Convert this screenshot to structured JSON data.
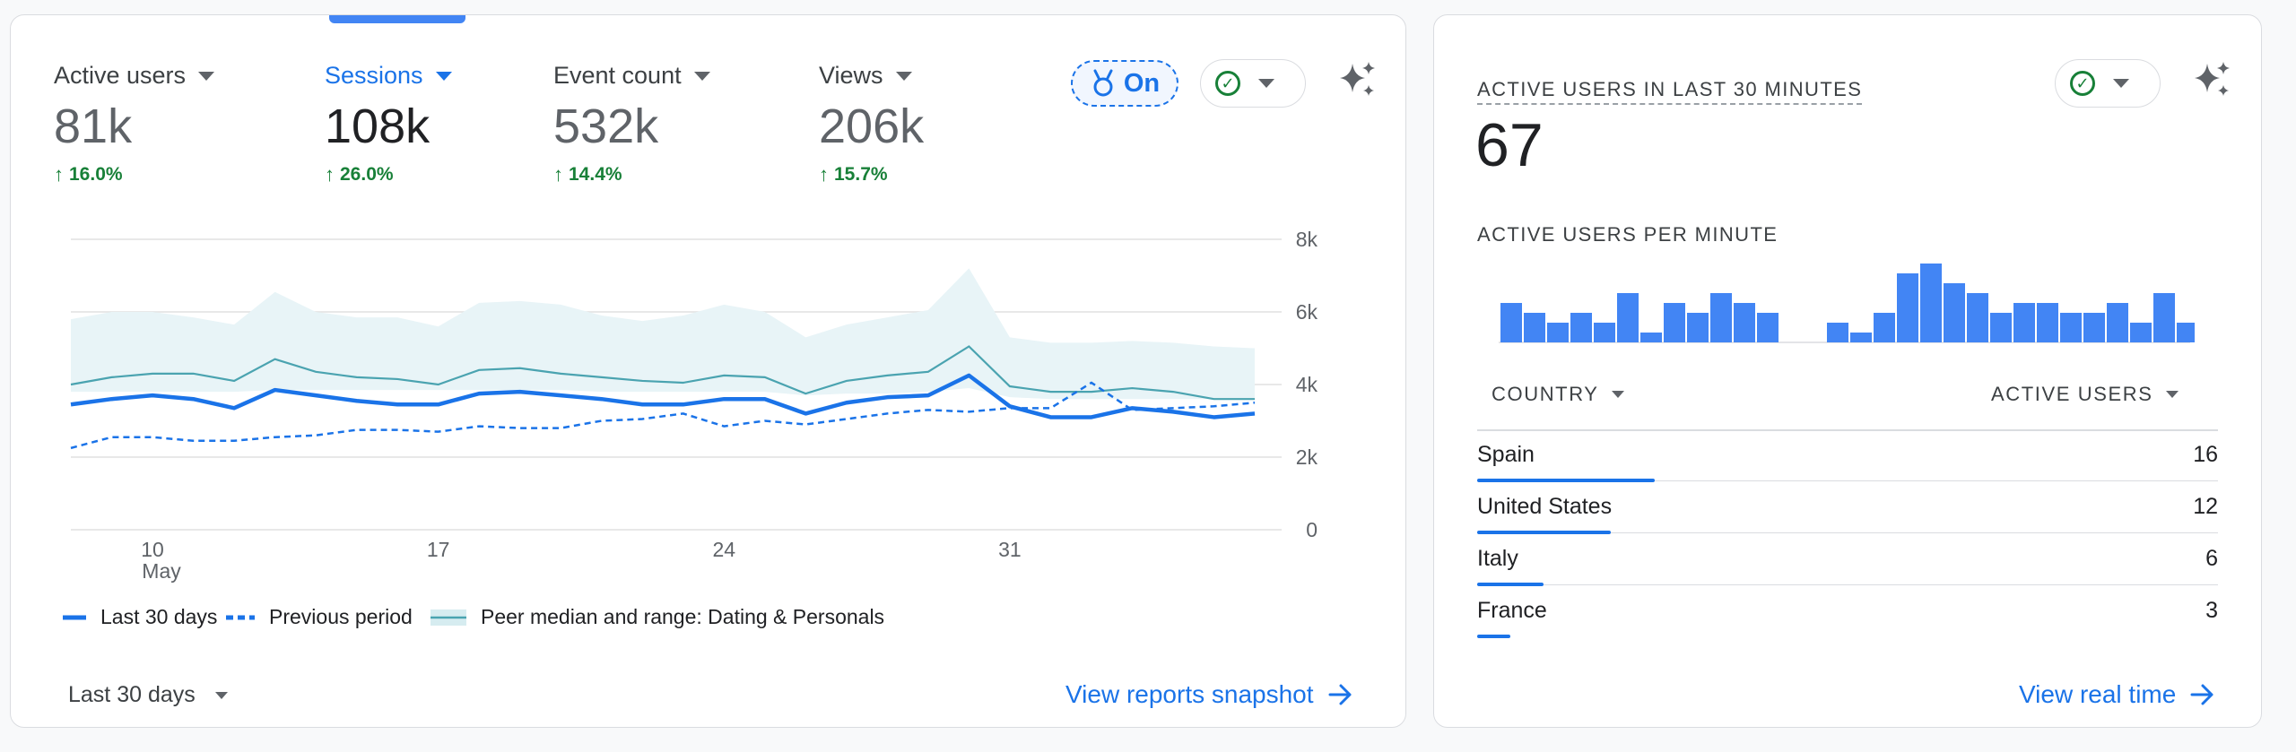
{
  "main": {
    "metrics": [
      {
        "label": "Active users",
        "value": "81k",
        "change": "16.0%"
      },
      {
        "label": "Sessions",
        "value": "108k",
        "change": "26.0%"
      },
      {
        "label": "Event count",
        "value": "532k",
        "change": "14.4%"
      },
      {
        "label": "Views",
        "value": "206k",
        "change": "15.7%"
      }
    ],
    "benchmark_chip": "On",
    "legend": {
      "last": "Last 30 days",
      "previous": "Previous period",
      "peer": "Peer median and range: Dating & Personals"
    },
    "date_range": "Last 30 days",
    "snapshot_link": "View reports snapshot"
  },
  "chart_data": {
    "type": "line",
    "x_ticks": [
      {
        "day": "10",
        "month": "May"
      },
      {
        "day": "17",
        "month": ""
      },
      {
        "day": "24",
        "month": ""
      },
      {
        "day": "31",
        "month": ""
      }
    ],
    "y_ticks": [
      "0",
      "2k",
      "4k",
      "6k",
      "8k"
    ],
    "ylim": [
      0,
      8000
    ],
    "series": [
      {
        "name": "Last 30 days",
        "values": [
          3450,
          3600,
          3700,
          3600,
          3350,
          3850,
          3700,
          3550,
          3450,
          3450,
          3750,
          3800,
          3700,
          3600,
          3450,
          3450,
          3600,
          3600,
          3200,
          3500,
          3650,
          3700,
          4250,
          3400,
          3100,
          3100,
          3350,
          3250,
          3100,
          3200
        ]
      },
      {
        "name": "Previous period",
        "values": [
          2250,
          2550,
          2550,
          2450,
          2450,
          2550,
          2600,
          2750,
          2750,
          2700,
          2850,
          2800,
          2800,
          3000,
          3050,
          3200,
          2850,
          3000,
          2900,
          3050,
          3200,
          3300,
          3250,
          3350,
          3350,
          4050,
          3300,
          3350,
          3400,
          3500
        ]
      }
    ],
    "peer_band": {
      "name": "Peer median and range: Dating & Personals",
      "median": [
        4000,
        4200,
        4300,
        4300,
        4100,
        4700,
        4350,
        4200,
        4150,
        4000,
        4400,
        4450,
        4300,
        4200,
        4100,
        4050,
        4250,
        4200,
        3750,
        4100,
        4250,
        4350,
        5050,
        3950,
        3800,
        3800,
        3900,
        3800,
        3600,
        3600
      ],
      "upper": [
        5800,
        6000,
        6000,
        5850,
        5650,
        6550,
        6000,
        5850,
        5850,
        5600,
        6250,
        6300,
        6200,
        5900,
        5750,
        5900,
        6200,
        6000,
        5300,
        5650,
        5850,
        6050,
        7200,
        5300,
        5150,
        5150,
        5200,
        5150,
        5050,
        5000
      ],
      "lower": [
        3800,
        3800,
        3800,
        3800,
        3800,
        3850,
        3850,
        3850,
        3850,
        3850,
        3850,
        3850,
        3850,
        3800,
        3800,
        3800,
        3800,
        3800,
        3700,
        3750,
        3750,
        3800,
        3900,
        3650,
        3600,
        3600,
        3600,
        3600,
        3600,
        3600
      ]
    }
  },
  "realtime": {
    "title": "ACTIVE USERS IN LAST 30 MINUTES",
    "count": "67",
    "per_minute_title": "ACTIVE USERS PER MINUTE",
    "per_minute": [
      4,
      3,
      2,
      3,
      2,
      5,
      1,
      4,
      3,
      5,
      4,
      3,
      0,
      0,
      2,
      1,
      3,
      7,
      8,
      6,
      5,
      3,
      4,
      4,
      3,
      3,
      4,
      2,
      5,
      2
    ],
    "col_country": "COUNTRY",
    "col_users": "ACTIVE USERS",
    "countries": [
      {
        "name": "Spain",
        "value": "16",
        "share": 0.24
      },
      {
        "name": "United States",
        "value": "12",
        "share": 0.18
      },
      {
        "name": "Italy",
        "value": "6",
        "share": 0.09
      },
      {
        "name": "France",
        "value": "3",
        "share": 0.045
      }
    ],
    "link": "View real time"
  },
  "colors": {
    "accent": "#1a73e8",
    "series": "#4285f4",
    "positive": "#188038",
    "band": "#e8f4f7",
    "median": "#4aa3b0"
  }
}
